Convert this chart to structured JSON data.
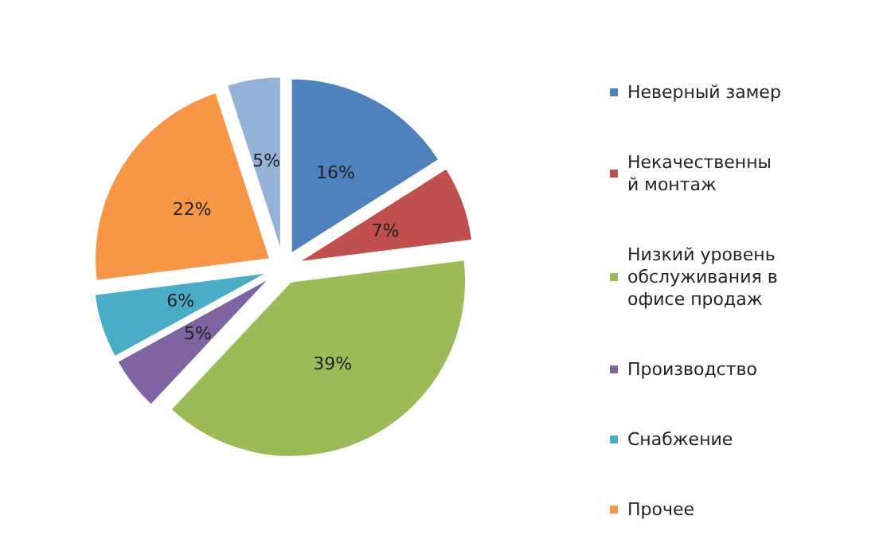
{
  "chart_data": {
    "type": "pie",
    "categories": [
      "Неверный замер",
      "Некачественный монтаж",
      "Низкий уровень обслуживания в офисе продаж",
      "Производство",
      "Снабжение",
      "Прочее",
      null
    ],
    "values": [
      16,
      7,
      39,
      5,
      6,
      22,
      5
    ],
    "value_labels": [
      "16%",
      "7%",
      "39%",
      "5%",
      "6%",
      "22%",
      "5%"
    ],
    "colors": [
      "#4f81bd",
      "#c0504d",
      "#9bbb59",
      "#8064a2",
      "#4bacc6",
      "#f79646",
      "#95b3d7"
    ],
    "legend": "right"
  }
}
